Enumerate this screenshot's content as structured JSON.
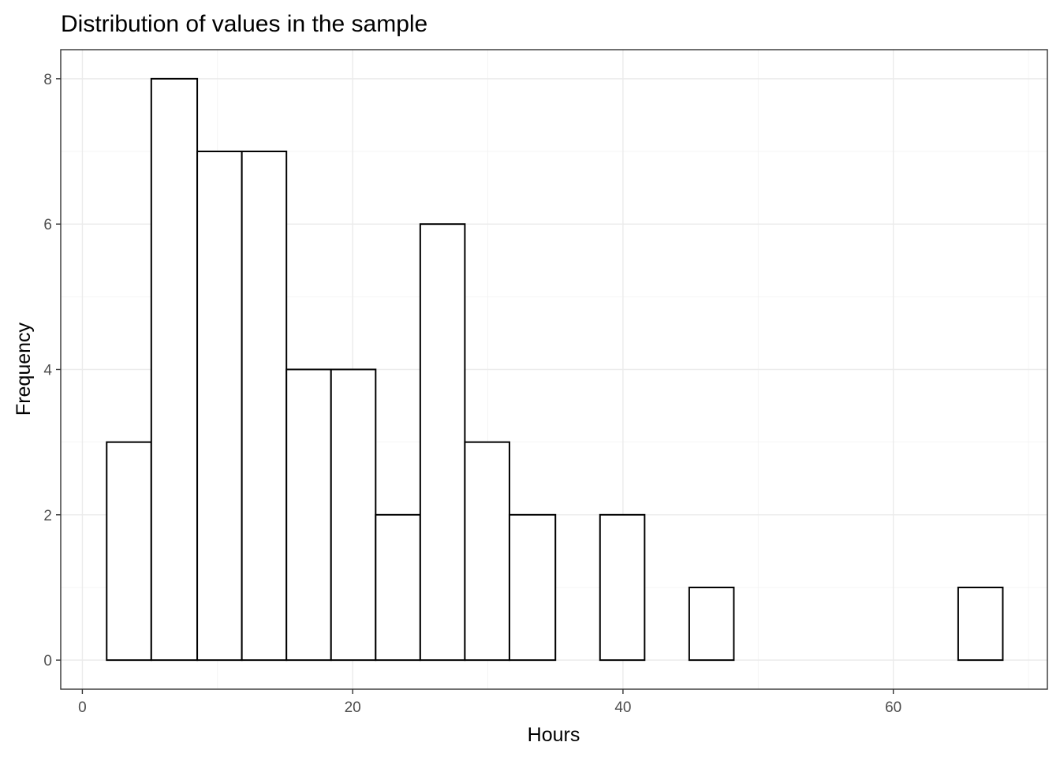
{
  "chart_data": {
    "type": "bar",
    "title": "Distribution of values in the sample",
    "xlabel": "Hours",
    "ylabel": "Frequency",
    "xlim": [
      -1.6,
      71.4
    ],
    "ylim": [
      -0.4,
      8.4
    ],
    "xticks": [
      0,
      20,
      40,
      60
    ],
    "yticks": [
      0,
      2,
      4,
      6,
      8
    ],
    "grid": true,
    "bins": [
      {
        "x0": 1.8,
        "x1": 5.1,
        "count": 3
      },
      {
        "x0": 5.1,
        "x1": 8.5,
        "count": 8
      },
      {
        "x0": 8.5,
        "x1": 11.8,
        "count": 7
      },
      {
        "x0": 11.8,
        "x1": 15.1,
        "count": 7
      },
      {
        "x0": 15.1,
        "x1": 18.4,
        "count": 4
      },
      {
        "x0": 18.4,
        "x1": 21.7,
        "count": 4
      },
      {
        "x0": 21.7,
        "x1": 25.0,
        "count": 2
      },
      {
        "x0": 25.0,
        "x1": 28.3,
        "count": 6
      },
      {
        "x0": 28.3,
        "x1": 31.6,
        "count": 3
      },
      {
        "x0": 31.6,
        "x1": 35.0,
        "count": 2
      },
      {
        "x0": 35.0,
        "x1": 38.3,
        "count": 0
      },
      {
        "x0": 38.3,
        "x1": 41.6,
        "count": 2
      },
      {
        "x0": 41.6,
        "x1": 44.9,
        "count": 0
      },
      {
        "x0": 44.9,
        "x1": 48.2,
        "count": 1
      },
      {
        "x0": 48.2,
        "x1": 51.5,
        "count": 0
      },
      {
        "x0": 51.5,
        "x1": 54.8,
        "count": 0
      },
      {
        "x0": 54.8,
        "x1": 58.1,
        "count": 0
      },
      {
        "x0": 58.1,
        "x1": 61.5,
        "count": 0
      },
      {
        "x0": 61.5,
        "x1": 64.8,
        "count": 0
      },
      {
        "x0": 64.8,
        "x1": 68.1,
        "count": 1
      }
    ]
  }
}
